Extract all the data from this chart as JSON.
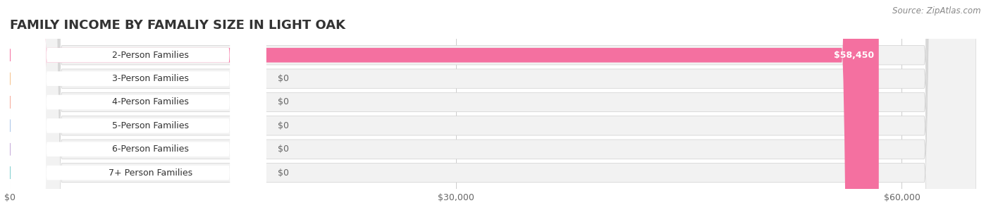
{
  "title": "FAMILY INCOME BY FAMALIY SIZE IN LIGHT OAK",
  "source": "Source: ZipAtlas.com",
  "categories": [
    "2-Person Families",
    "3-Person Families",
    "4-Person Families",
    "5-Person Families",
    "6-Person Families",
    "7+ Person Families"
  ],
  "values": [
    58450,
    0,
    0,
    0,
    0,
    0
  ],
  "bar_colors": [
    "#f470a0",
    "#f5c18a",
    "#f5a898",
    "#a8c4e8",
    "#c4a8d8",
    "#7ecece"
  ],
  "bg_bar_color": "#f0f0f0",
  "xlim": [
    0,
    65000
  ],
  "xticks": [
    0,
    30000,
    60000
  ],
  "xtick_labels": [
    "$0",
    "$30,000",
    "$60,000"
  ],
  "value_labels": [
    "$58,450",
    "$0",
    "$0",
    "$0",
    "$0",
    "$0"
  ],
  "background_color": "#ffffff",
  "title_fontsize": 13,
  "label_fontsize": 9,
  "tick_fontsize": 9,
  "source_fontsize": 8.5
}
